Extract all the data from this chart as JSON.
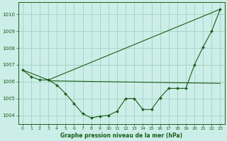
{
  "title": "Graphe pression niveau de la mer (hPa)",
  "bg_color": "#cceee8",
  "grid_color": "#99ccbb",
  "line_color": "#1a5c1a",
  "xlim": [
    -0.5,
    23.5
  ],
  "ylim": [
    1003.5,
    1010.7
  ],
  "yticks": [
    1004,
    1005,
    1006,
    1007,
    1008,
    1009,
    1010
  ],
  "xticks": [
    0,
    1,
    2,
    3,
    4,
    5,
    6,
    7,
    8,
    9,
    10,
    11,
    12,
    13,
    14,
    15,
    16,
    17,
    18,
    19,
    20,
    21,
    22,
    23
  ],
  "series_main": {
    "x": [
      0,
      1,
      2,
      3,
      4,
      5,
      6,
      7,
      8,
      9,
      10,
      11,
      12,
      13,
      14,
      15,
      16,
      17,
      18,
      19,
      20,
      21,
      22,
      23
    ],
    "y": [
      1006.7,
      1006.3,
      1006.1,
      1006.1,
      1005.8,
      1005.3,
      1004.7,
      1004.1,
      1003.85,
      1003.95,
      1004.0,
      1004.25,
      1005.0,
      1005.0,
      1004.35,
      1004.35,
      1005.05,
      1005.6,
      1005.6,
      1005.6,
      1007.0,
      1008.05,
      1009.0,
      1010.3
    ]
  },
  "series_triangle": {
    "x": [
      0,
      3,
      23
    ],
    "y": [
      1006.7,
      1006.1,
      1010.3
    ]
  },
  "series_flat": {
    "x": [
      3,
      23
    ],
    "y": [
      1006.05,
      1005.9
    ]
  }
}
